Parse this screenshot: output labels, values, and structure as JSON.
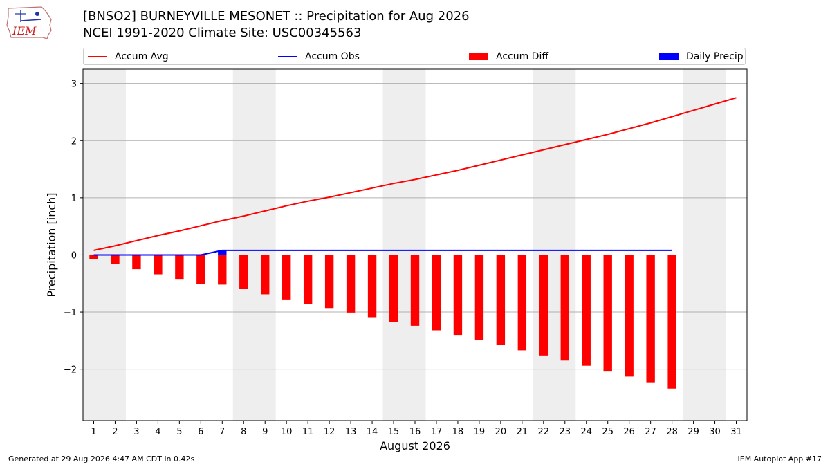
{
  "header": {
    "logo_text": "IEM",
    "title_line1": "[BNSO2] BURNEYVILLE MESONET :: Precipitation for Aug 2026",
    "title_line2": "NCEI 1991-2020 Climate Site: USC00345563"
  },
  "legend": {
    "items": [
      {
        "label": "Accum Avg",
        "kind": "line",
        "color": "#ff0000"
      },
      {
        "label": "Accum Obs",
        "kind": "line",
        "color": "#0000ff"
      },
      {
        "label": "Accum Diff",
        "kind": "patch",
        "color": "#ff0000"
      },
      {
        "label": "Daily Precip",
        "kind": "patch",
        "color": "#0000ff"
      }
    ],
    "placement": "top, above plot"
  },
  "footer": {
    "left": "Generated at 29 Aug 2026 4:47 AM CDT in 0.42s",
    "right": "IEM Autoplot App #17"
  },
  "chart_data": {
    "type": "bar",
    "xlabel": "August 2026",
    "ylabel": "Precipitation [inch]",
    "xlim": [
      0.5,
      31.5
    ],
    "ylim": [
      -2.9,
      3.25
    ],
    "x_ticks": [
      1,
      2,
      3,
      4,
      5,
      6,
      7,
      8,
      9,
      10,
      11,
      12,
      13,
      14,
      15,
      16,
      17,
      18,
      19,
      20,
      21,
      22,
      23,
      24,
      25,
      26,
      27,
      28,
      29,
      30,
      31
    ],
    "y_ticks": [
      3,
      2,
      1,
      0,
      -1,
      -2
    ],
    "y_tick_labels": [
      "3",
      "2",
      "1",
      "0",
      "−1",
      "−2"
    ],
    "grid": "horizontal",
    "weekend_shading": [
      [
        0.5,
        2.5
      ],
      [
        7.5,
        9.5
      ],
      [
        14.5,
        16.5
      ],
      [
        21.5,
        23.5
      ],
      [
        28.5,
        30.5
      ]
    ],
    "series": [
      {
        "name": "Accum Avg",
        "kind": "line",
        "color": "#ff0000",
        "x": [
          1,
          2,
          3,
          4,
          5,
          6,
          7,
          8,
          9,
          10,
          11,
          12,
          13,
          14,
          15,
          16,
          17,
          18,
          19,
          20,
          21,
          22,
          23,
          24,
          25,
          26,
          27,
          28,
          29,
          30,
          31
        ],
        "values": [
          0.08,
          0.16,
          0.25,
          0.34,
          0.42,
          0.51,
          0.6,
          0.68,
          0.77,
          0.86,
          0.94,
          1.01,
          1.09,
          1.17,
          1.25,
          1.32,
          1.4,
          1.48,
          1.57,
          1.66,
          1.75,
          1.84,
          1.93,
          2.02,
          2.11,
          2.21,
          2.31,
          2.42,
          2.53,
          2.64,
          2.75
        ]
      },
      {
        "name": "Accum Obs",
        "kind": "line",
        "color": "#0000ff",
        "x": [
          1,
          2,
          3,
          4,
          5,
          6,
          7,
          8,
          9,
          10,
          11,
          12,
          13,
          14,
          15,
          16,
          17,
          18,
          19,
          20,
          21,
          22,
          23,
          24,
          25,
          26,
          27,
          28
        ],
        "values": [
          0,
          0,
          0,
          0,
          0,
          0,
          0.08,
          0.08,
          0.08,
          0.08,
          0.08,
          0.08,
          0.08,
          0.08,
          0.08,
          0.08,
          0.08,
          0.08,
          0.08,
          0.08,
          0.08,
          0.08,
          0.08,
          0.08,
          0.08,
          0.08,
          0.08,
          0.08
        ]
      },
      {
        "name": "Accum Diff",
        "kind": "bar",
        "color": "#ff0000",
        "x": [
          1,
          2,
          3,
          4,
          5,
          6,
          7,
          8,
          9,
          10,
          11,
          12,
          13,
          14,
          15,
          16,
          17,
          18,
          19,
          20,
          21,
          22,
          23,
          24,
          25,
          26,
          27,
          28
        ],
        "values": [
          -0.07,
          -0.16,
          -0.25,
          -0.34,
          -0.42,
          -0.51,
          -0.52,
          -0.6,
          -0.69,
          -0.78,
          -0.86,
          -0.93,
          -1.01,
          -1.09,
          -1.17,
          -1.24,
          -1.32,
          -1.4,
          -1.49,
          -1.58,
          -1.67,
          -1.76,
          -1.85,
          -1.94,
          -2.03,
          -2.13,
          -2.23,
          -2.34
        ]
      },
      {
        "name": "Daily Precip",
        "kind": "bar",
        "color": "#0000ff",
        "x": [
          7
        ],
        "values": [
          0.08
        ]
      }
    ]
  }
}
